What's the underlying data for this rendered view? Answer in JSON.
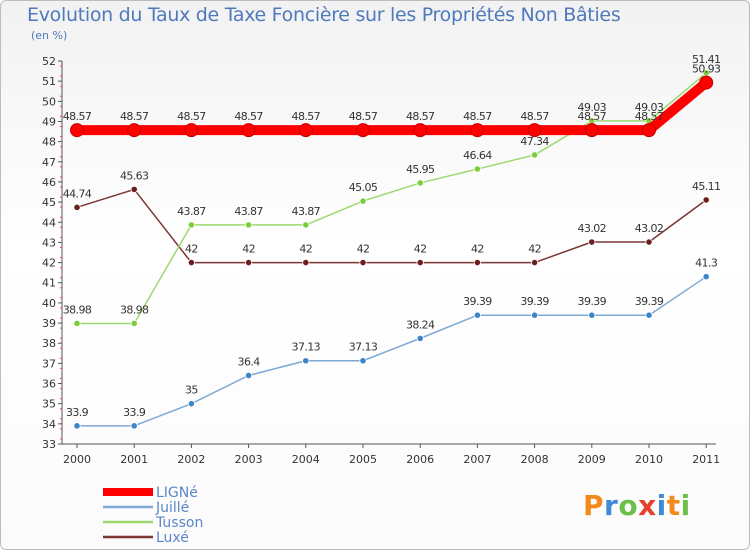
{
  "chart_data": {
    "type": "line",
    "title": "Evolution du Taux de Taxe Foncière sur les Propriétés Non Bâties",
    "subtitle": "(en %)",
    "x": [
      "2000",
      "2001",
      "2002",
      "2003",
      "2004",
      "2005",
      "2006",
      "2007",
      "2008",
      "2009",
      "2010",
      "2011"
    ],
    "ylim": [
      33,
      52
    ],
    "yticks": [
      33,
      34,
      35,
      36,
      37,
      38,
      39,
      40,
      41,
      42,
      43,
      44,
      45,
      46,
      47,
      48,
      49,
      50,
      51,
      52
    ],
    "grid": false,
    "legend_position": "bottom-left",
    "series": [
      {
        "name": "LIGNé",
        "color": "#ff0000",
        "marker": "#ff0000",
        "values": [
          48.57,
          48.57,
          48.57,
          48.57,
          48.57,
          48.57,
          48.57,
          48.57,
          48.57,
          48.57,
          48.57,
          50.93
        ],
        "labels": [
          "48.57",
          "48.57",
          "48.57",
          "48.57",
          "48.57",
          "48.57",
          "48.57",
          "48.57",
          "48.57",
          "48.57",
          "48.57",
          "50.93"
        ]
      },
      {
        "name": "Juillé",
        "color": "#7ea9d6",
        "marker": "#3d85c6",
        "values": [
          33.9,
          33.9,
          35,
          36.4,
          37.13,
          37.13,
          38.24,
          39.39,
          39.39,
          39.39,
          39.39,
          41.3
        ],
        "labels": [
          "33.9",
          "33.9",
          "35",
          "36.4",
          "37.13",
          "37.13",
          "38.24",
          "39.39",
          "39.39",
          "39.39",
          "39.39",
          "41.3"
        ]
      },
      {
        "name": "Tusson",
        "color": "#9bd96e",
        "marker": "#7ccd3a",
        "values": [
          38.98,
          38.98,
          43.87,
          43.87,
          43.87,
          45.05,
          45.95,
          46.64,
          47.34,
          49.03,
          49.03,
          51.41
        ],
        "labels": [
          "38.98",
          "38.98",
          "43.87",
          "43.87",
          "43.87",
          "45.05",
          "45.95",
          "46.64",
          "47.34",
          "49.03",
          "49.03",
          "51.41"
        ]
      },
      {
        "name": "Luxé",
        "color": "#7a3535",
        "marker": "#6b1f1f",
        "values": [
          44.74,
          45.63,
          42,
          42,
          42,
          42,
          42,
          42,
          42,
          43.02,
          43.02,
          45.11
        ],
        "labels": [
          "44.74",
          "45.63",
          "42",
          "42",
          "42",
          "42",
          "42",
          "42",
          "42",
          "43.02",
          "43.02",
          "45.11"
        ]
      }
    ]
  },
  "brand": {
    "letters": [
      "P",
      "r",
      "o",
      "x",
      "i",
      "t",
      "i"
    ]
  }
}
